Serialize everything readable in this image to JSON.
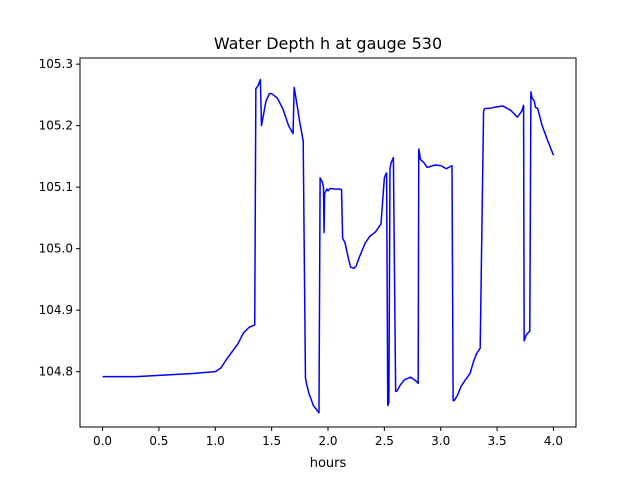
{
  "chart_data": {
    "type": "line",
    "title": "Water Depth h at gauge 530",
    "xlabel": "hours",
    "ylabel": "",
    "xlim": [
      -0.2,
      4.2
    ],
    "ylim": [
      104.71,
      105.31
    ],
    "xticks": [
      0.0,
      0.5,
      1.0,
      1.5,
      2.0,
      2.5,
      3.0,
      3.5,
      4.0
    ],
    "xtick_labels": [
      "0.0",
      "0.5",
      "1.0",
      "1.5",
      "2.0",
      "2.5",
      "3.0",
      "3.5",
      "4.0"
    ],
    "yticks": [
      104.8,
      104.9,
      105.0,
      105.1,
      105.2,
      105.3
    ],
    "ytick_labels": [
      "104.8",
      "104.9",
      "105.0",
      "105.1",
      "105.2",
      "105.3"
    ],
    "grid": false,
    "legend": null,
    "series": [
      {
        "color": "#0000ff",
        "x": [
          0.0,
          0.3,
          0.6,
          0.8,
          1.0,
          1.05,
          1.1,
          1.2,
          1.25,
          1.3,
          1.35,
          1.36,
          1.38,
          1.4,
          1.41,
          1.42,
          1.45,
          1.48,
          1.5,
          1.55,
          1.6,
          1.65,
          1.69,
          1.7,
          1.72,
          1.75,
          1.78,
          1.8,
          1.81,
          1.83,
          1.87,
          1.92,
          1.93,
          1.95,
          1.96,
          1.965,
          1.97,
          1.99,
          2.0,
          2.02,
          2.05,
          2.1,
          2.12,
          2.13,
          2.15,
          2.18,
          2.2,
          2.23,
          2.25,
          2.28,
          2.3,
          2.33,
          2.37,
          2.42,
          2.47,
          2.5,
          2.51,
          2.52,
          2.53,
          2.54,
          2.55,
          2.56,
          2.58,
          2.6,
          2.61,
          2.64,
          2.68,
          2.73,
          2.78,
          2.8,
          2.805,
          2.81,
          2.82,
          2.85,
          2.88,
          2.95,
          3.0,
          3.05,
          3.1,
          3.11,
          3.12,
          3.15,
          3.18,
          3.22,
          3.26,
          3.29,
          3.32,
          3.35,
          3.38,
          3.385,
          3.4,
          3.43,
          3.48,
          3.55,
          3.62,
          3.68,
          3.72,
          3.735,
          3.74,
          3.76,
          3.79,
          3.8,
          3.805,
          3.81,
          3.83,
          3.84,
          3.86,
          3.9,
          3.95,
          4.0
        ],
        "y": [
          104.792,
          104.792,
          104.795,
          104.797,
          104.8,
          104.806,
          104.82,
          104.845,
          104.863,
          104.872,
          104.876,
          105.26,
          105.265,
          105.275,
          105.2,
          105.21,
          105.24,
          105.252,
          105.252,
          105.245,
          105.227,
          105.2,
          105.187,
          105.262,
          105.24,
          105.205,
          105.175,
          104.79,
          104.78,
          104.765,
          104.745,
          104.733,
          105.115,
          105.108,
          105.1,
          105.026,
          105.09,
          105.097,
          105.094,
          105.098,
          105.097,
          105.097,
          105.096,
          105.017,
          105.01,
          104.985,
          104.97,
          104.968,
          104.972,
          104.987,
          104.996,
          105.009,
          105.02,
          105.027,
          105.04,
          105.115,
          105.12,
          105.123,
          104.745,
          104.75,
          105.13,
          105.14,
          105.148,
          104.768,
          104.768,
          104.778,
          104.787,
          104.791,
          104.785,
          104.781,
          105.162,
          105.158,
          105.145,
          105.14,
          105.132,
          105.136,
          105.135,
          105.13,
          105.135,
          104.753,
          104.753,
          104.762,
          104.776,
          104.787,
          104.797,
          104.816,
          104.83,
          104.838,
          105.222,
          105.227,
          105.228,
          105.228,
          105.23,
          105.232,
          105.225,
          105.214,
          105.224,
          105.233,
          104.85,
          104.86,
          104.866,
          105.255,
          105.25,
          105.245,
          105.24,
          105.23,
          105.228,
          105.2,
          105.175,
          105.152
        ]
      }
    ]
  }
}
